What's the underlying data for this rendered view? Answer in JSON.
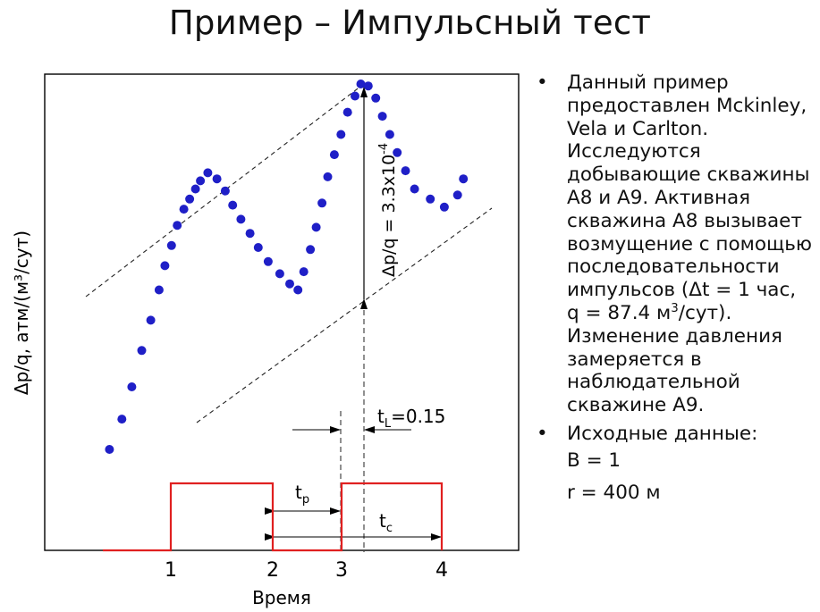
{
  "slide": {
    "title": "Пример – Импульсный тест"
  },
  "chart_data": {
    "type": "scatter",
    "xlabel": "Время",
    "ylabel": "Δp/q, атм/(м³/сут)",
    "x_ticks": [
      "1",
      "2",
      "3",
      "4"
    ],
    "xlim": [
      0.1,
      4.75
    ],
    "ylim": [
      0,
      1
    ],
    "grid": false,
    "series": [
      {
        "kind": "scatter",
        "marker_color": "#1f1fc7",
        "x": [
          0.18,
          0.33,
          0.45,
          0.57,
          0.68,
          0.78,
          0.85,
          0.93,
          1.0,
          1.08,
          1.15,
          1.22,
          1.28,
          1.37,
          1.48,
          1.58,
          1.67,
          1.77,
          1.88,
          1.98,
          2.1,
          2.24,
          2.36,
          2.46,
          2.53,
          2.61,
          2.68,
          2.75,
          2.82,
          2.9,
          2.98,
          3.06,
          3.15,
          3.22,
          3.31,
          3.4,
          3.48,
          3.57,
          3.66,
          3.76,
          3.87,
          4.06,
          4.23,
          4.39,
          4.46
        ],
        "y": [
          0.115,
          0.19,
          0.27,
          0.36,
          0.435,
          0.51,
          0.57,
          0.62,
          0.67,
          0.71,
          0.735,
          0.76,
          0.78,
          0.8,
          0.785,
          0.755,
          0.72,
          0.685,
          0.65,
          0.615,
          0.58,
          0.55,
          0.525,
          0.51,
          0.555,
          0.61,
          0.665,
          0.725,
          0.79,
          0.845,
          0.895,
          0.95,
          0.99,
          1.02,
          1.015,
          0.985,
          0.94,
          0.895,
          0.85,
          0.805,
          0.76,
          0.735,
          0.715,
          0.745,
          0.785
        ]
      },
      {
        "kind": "step",
        "name": "pulse",
        "color": "#e02020",
        "x": [
          0.1,
          1.0,
          1.0,
          2.0,
          2.0,
          3.0,
          3.0,
          4.0,
          4.0
        ],
        "y": [
          0,
          0,
          1,
          1,
          0,
          0,
          1,
          1,
          0
        ]
      }
    ],
    "annotations": {
      "amplitude_label": "Δp/q = 3.3x10",
      "amplitude_exponent": "-4",
      "lag_label_t": "t",
      "lag_label_sub": "L",
      "lag_label_value": "=0.15",
      "tp_label": "t",
      "tp_sub": "p",
      "tc_label": "t",
      "tc_sub": "c"
    }
  },
  "bullets": {
    "item1": "Данный пример предоставлен Mckinley, Vela и Carlton. Исследуются добывающие скважины А8 и А9. Активная скважина А8 вызывает возмущение с помощью последовательности импульсов (Δt = 1 час, q = 87.4 м³/сут). Изменение давления замеряется в наблюдательной скважине А9.",
    "item2": "Исходные данные:",
    "param_b": "B = 1",
    "param_r": "r = 400 м"
  }
}
